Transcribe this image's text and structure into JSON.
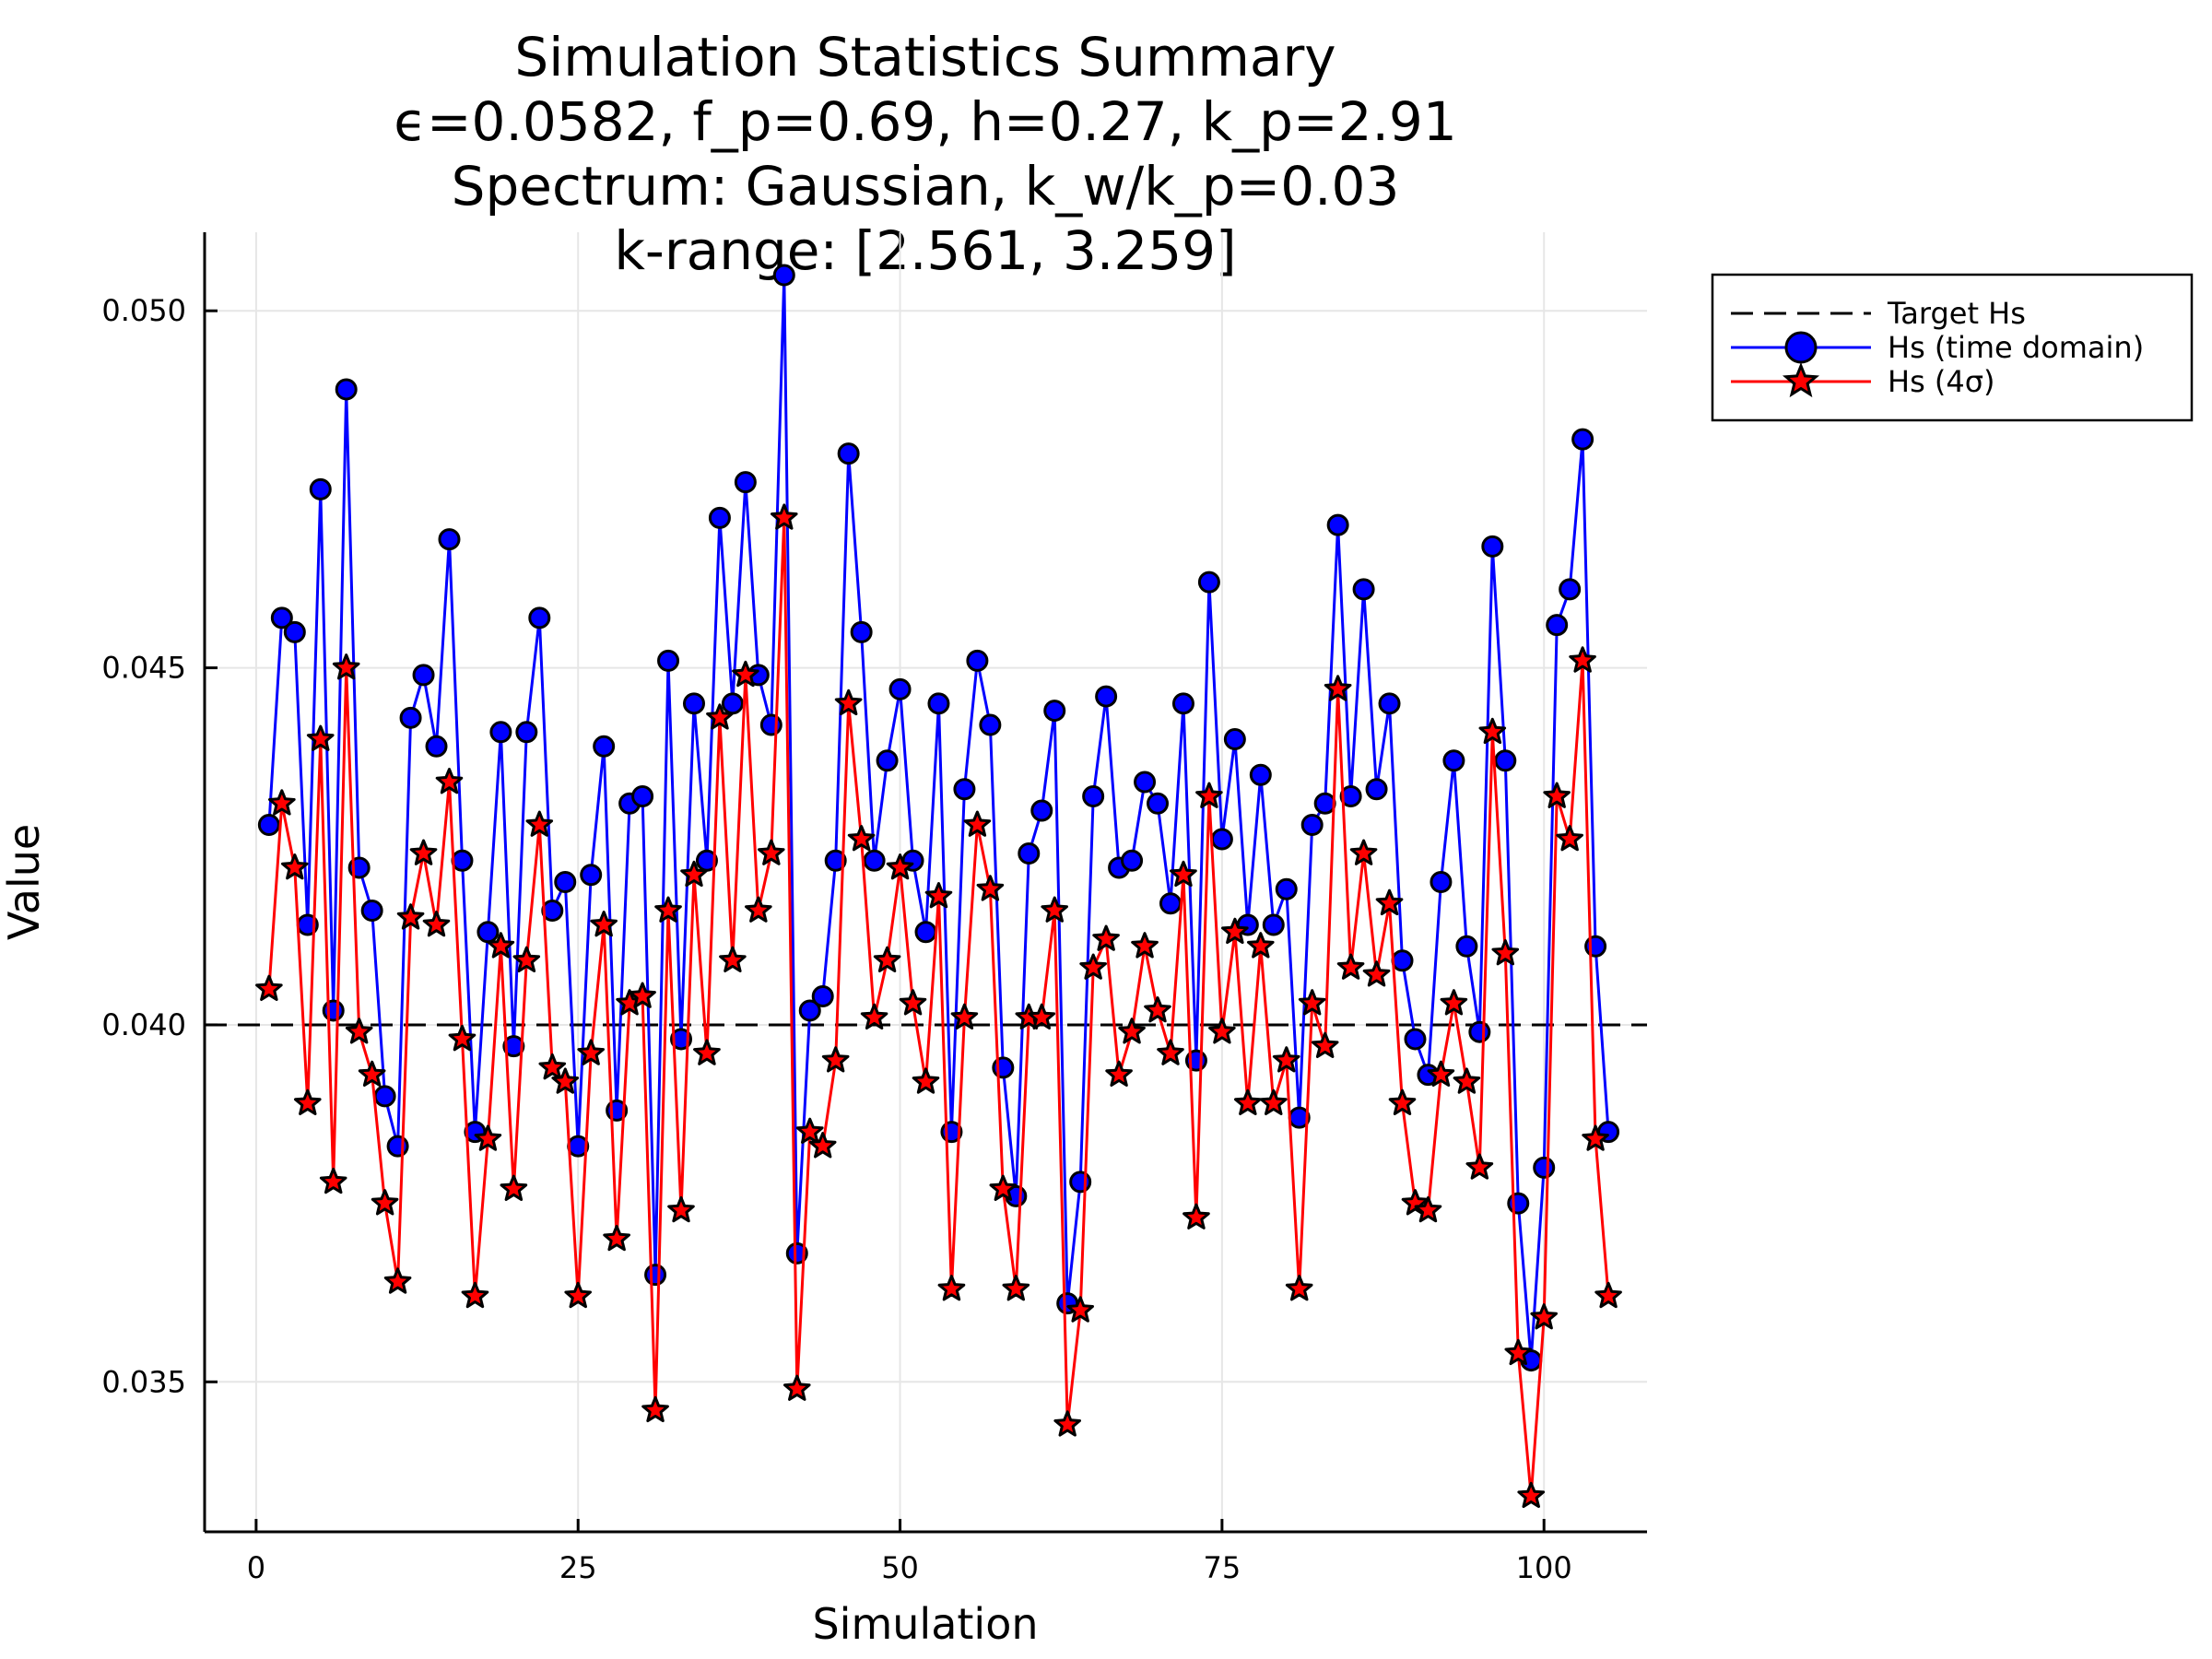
{
  "chart_data": {
    "type": "line",
    "title": "Simulation Statistics Summary",
    "subtitle_lines": [
      "ϵ=0.0582, f_p=0.69, h=0.27, k_p=2.91",
      "Spectrum: Gaussian, k_w/k_p=0.03",
      "k-range: [2.561, 3.259]"
    ],
    "xlabel": "Simulation",
    "ylabel": "Value",
    "xlim": [
      -4,
      108
    ],
    "ylim": [
      0.0329,
      0.0511
    ],
    "xticks": [
      0,
      25,
      50,
      75,
      100
    ],
    "yticks": [
      0.035,
      0.04,
      0.045,
      0.05
    ],
    "xtick_labels": [
      "0",
      "25",
      "50",
      "75",
      "100"
    ],
    "ytick_labels": [
      "0.035",
      "0.040",
      "0.045",
      "0.050"
    ],
    "grid": true,
    "legend_position": "outside-top-right",
    "target": {
      "name": "Target Hs",
      "value": 0.04,
      "color": "#000000"
    },
    "series": [
      {
        "name": "Hs (time domain)",
        "color": "#0000ff",
        "marker": "circle",
        "values": [
          0.0428,
          0.0457,
          0.0455,
          0.0414,
          0.0475,
          0.0402,
          0.0489,
          0.0422,
          0.0416,
          0.039,
          0.0383,
          0.0443,
          0.0449,
          0.0439,
          0.0468,
          0.0423,
          0.0385,
          0.0413,
          0.0441,
          0.0397,
          0.0441,
          0.0457,
          0.0416,
          0.042,
          0.0383,
          0.0421,
          0.0439,
          0.0388,
          0.0431,
          0.0432,
          0.0365,
          0.0451,
          0.0398,
          0.0445,
          0.0423,
          0.0471,
          0.0445,
          0.0476,
          0.0449,
          0.0442,
          0.0505,
          0.0368,
          0.0402,
          0.0404,
          0.0423,
          0.048,
          0.0455,
          0.0423,
          0.0437,
          0.0447,
          0.0423,
          0.0413,
          0.0445,
          0.0385,
          0.0433,
          0.0451,
          0.0442,
          0.0394,
          0.0376,
          0.0424,
          0.043,
          0.0444,
          0.0361,
          0.0378,
          0.0432,
          0.0446,
          0.0422,
          0.0423,
          0.0434,
          0.0431,
          0.0417,
          0.0445,
          0.0395,
          0.0462,
          0.0426,
          0.044,
          0.0414,
          0.0435,
          0.0414,
          0.0419,
          0.0387,
          0.0428,
          0.0431,
          0.047,
          0.0432,
          0.0461,
          0.0433,
          0.0445,
          0.0409,
          0.0398,
          0.0393,
          0.042,
          0.0437,
          0.0411,
          0.0399,
          0.0467,
          0.0437,
          0.0375,
          0.0353,
          0.038,
          0.0456,
          0.0461,
          0.0482,
          0.0411,
          0.0385
        ]
      },
      {
        "name": "Hs (4σ)",
        "color": "#ff0000",
        "marker": "star",
        "values": [
          0.0405,
          0.0431,
          0.0422,
          0.0389,
          0.044,
          0.0378,
          0.045,
          0.0399,
          0.0393,
          0.0375,
          0.0364,
          0.0415,
          0.0424,
          0.0414,
          0.0434,
          0.0398,
          0.0362,
          0.0384,
          0.0411,
          0.0377,
          0.0409,
          0.0428,
          0.0394,
          0.0392,
          0.0362,
          0.0396,
          0.0414,
          0.037,
          0.0403,
          0.0404,
          0.0346,
          0.0416,
          0.0374,
          0.0421,
          0.0396,
          0.0443,
          0.0409,
          0.0449,
          0.0416,
          0.0424,
          0.0471,
          0.0349,
          0.0385,
          0.0383,
          0.0395,
          0.0445,
          0.0426,
          0.0401,
          0.0409,
          0.0422,
          0.0403,
          0.0392,
          0.0418,
          0.0363,
          0.0401,
          0.0428,
          0.0419,
          0.0377,
          0.0363,
          0.0401,
          0.0401,
          0.0416,
          0.0344,
          0.036,
          0.0408,
          0.0412,
          0.0393,
          0.0399,
          0.0411,
          0.0402,
          0.0396,
          0.0421,
          0.0373,
          0.0432,
          0.0399,
          0.0413,
          0.0389,
          0.0411,
          0.0389,
          0.0395,
          0.0363,
          0.0403,
          0.0397,
          0.0447,
          0.0408,
          0.0424,
          0.0407,
          0.0417,
          0.0389,
          0.0375,
          0.0374,
          0.0393,
          0.0403,
          0.0392,
          0.038,
          0.0441,
          0.041,
          0.0354,
          0.0334,
          0.0359,
          0.0432,
          0.0426,
          0.0451,
          0.0384,
          0.0362
        ]
      }
    ]
  }
}
